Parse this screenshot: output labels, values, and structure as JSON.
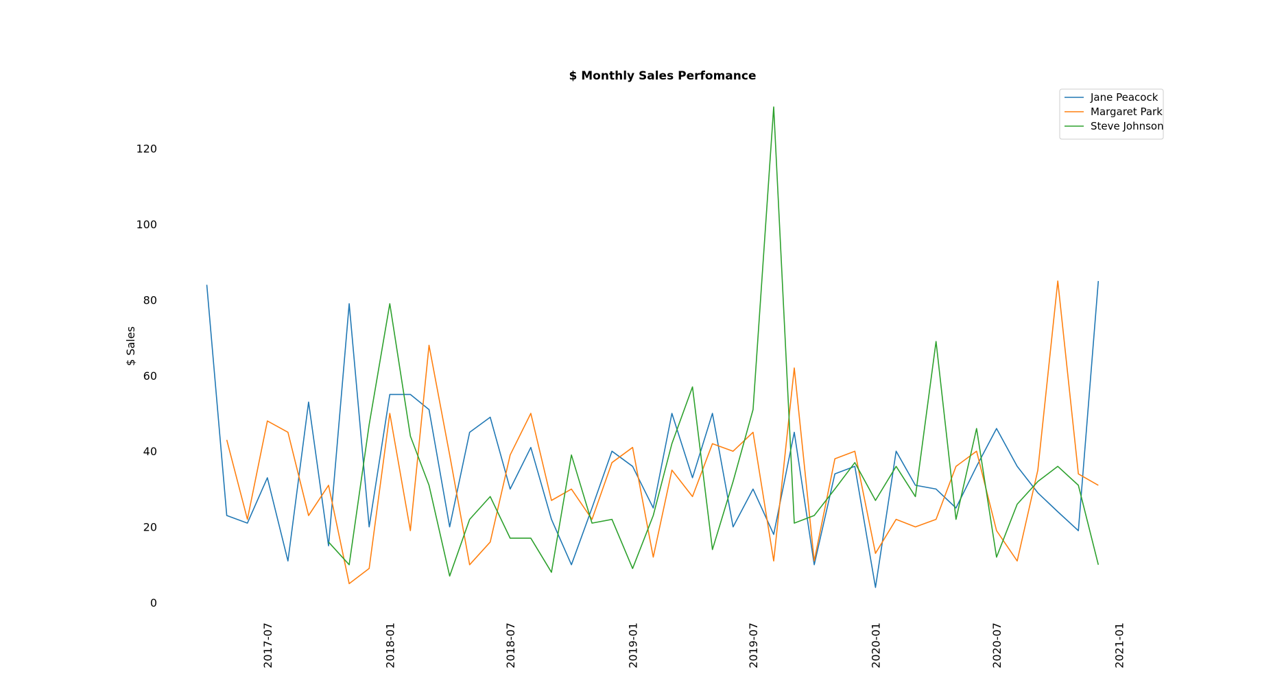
{
  "chart_data": {
    "type": "line",
    "title": "$ Monthly Sales Perfomance",
    "xlabel": "",
    "ylabel": "$ Sales",
    "x_ticks": [
      "2017-07",
      "2018-01",
      "2018-07",
      "2019-01",
      "2019-07",
      "2020-01",
      "2020-07",
      "2021-01"
    ],
    "y_ticks": [
      0,
      20,
      40,
      60,
      80,
      100,
      120
    ],
    "ylim": [
      -2,
      133
    ],
    "xlim": [
      "2017-03-15",
      "2021-01-15"
    ],
    "grid": false,
    "legend_position": "top-right",
    "series": [
      {
        "name": "Jane Peacock",
        "color": "#1f77b4",
        "points": [
          [
            "2017-04-01",
            84
          ],
          [
            "2017-05-01",
            23
          ],
          [
            "2017-06-01",
            21
          ],
          [
            "2017-07-01",
            33
          ],
          [
            "2017-08-01",
            11
          ],
          [
            "2017-09-01",
            53
          ],
          [
            "2017-10-01",
            15
          ],
          [
            "2017-11-01",
            79
          ],
          [
            "2017-12-01",
            20
          ],
          [
            "2018-01-01",
            55
          ],
          [
            "2018-02-01",
            55
          ],
          [
            "2018-03-01",
            51
          ],
          [
            "2018-04-01",
            20
          ],
          [
            "2018-05-01",
            45
          ],
          [
            "2018-06-01",
            49
          ],
          [
            "2018-07-01",
            30
          ],
          [
            "2018-08-01",
            41
          ],
          [
            "2018-09-01",
            22
          ],
          [
            "2018-10-01",
            10
          ],
          [
            "2018-11-01",
            25
          ],
          [
            "2018-12-01",
            40
          ],
          [
            "2019-01-01",
            36
          ],
          [
            "2019-02-01",
            25
          ],
          [
            "2019-03-01",
            50
          ],
          [
            "2019-04-01",
            33
          ],
          [
            "2019-05-01",
            50
          ],
          [
            "2019-06-01",
            20
          ],
          [
            "2019-07-01",
            30
          ],
          [
            "2019-08-01",
            18
          ],
          [
            "2019-09-01",
            45
          ],
          [
            "2019-10-01",
            10
          ],
          [
            "2019-11-01",
            34
          ],
          [
            "2019-12-01",
            36
          ],
          [
            "2020-01-01",
            4
          ],
          [
            "2020-02-01",
            40
          ],
          [
            "2020-03-01",
            31
          ],
          [
            "2020-04-01",
            30
          ],
          [
            "2020-05-01",
            25
          ],
          [
            "2020-06-01",
            36
          ],
          [
            "2020-07-01",
            46
          ],
          [
            "2020-08-01",
            36
          ],
          [
            "2020-09-01",
            29
          ],
          [
            "2020-10-01",
            24
          ],
          [
            "2020-11-01",
            19
          ],
          [
            "2020-12-01",
            85
          ]
        ]
      },
      {
        "name": "Margaret Park",
        "color": "#ff7f0e",
        "points": [
          [
            "2017-05-01",
            43
          ],
          [
            "2017-06-01",
            22
          ],
          [
            "2017-07-01",
            48
          ],
          [
            "2017-08-01",
            45
          ],
          [
            "2017-09-01",
            23
          ],
          [
            "2017-10-01",
            31
          ],
          [
            "2017-11-01",
            5
          ],
          [
            "2017-12-01",
            9
          ],
          [
            "2018-01-01",
            50
          ],
          [
            "2018-02-01",
            19
          ],
          [
            "2018-03-01",
            68
          ],
          [
            "2018-04-01",
            39
          ],
          [
            "2018-05-01",
            10
          ],
          [
            "2018-06-01",
            16
          ],
          [
            "2018-07-01",
            39
          ],
          [
            "2018-08-01",
            50
          ],
          [
            "2018-09-01",
            27
          ],
          [
            "2018-10-01",
            30
          ],
          [
            "2018-11-01",
            22
          ],
          [
            "2018-12-01",
            37
          ],
          [
            "2019-01-01",
            41
          ],
          [
            "2019-02-01",
            12
          ],
          [
            "2019-03-01",
            35
          ],
          [
            "2019-04-01",
            28
          ],
          [
            "2019-05-01",
            42
          ],
          [
            "2019-06-01",
            40
          ],
          [
            "2019-07-01",
            45
          ],
          [
            "2019-08-01",
            11
          ],
          [
            "2019-09-01",
            62
          ],
          [
            "2019-10-01",
            11
          ],
          [
            "2019-11-01",
            38
          ],
          [
            "2019-12-01",
            40
          ],
          [
            "2020-01-01",
            13
          ],
          [
            "2020-02-01",
            22
          ],
          [
            "2020-03-01",
            20
          ],
          [
            "2020-04-01",
            22
          ],
          [
            "2020-05-01",
            36
          ],
          [
            "2020-06-01",
            40
          ],
          [
            "2020-07-01",
            19
          ],
          [
            "2020-08-01",
            11
          ],
          [
            "2020-09-01",
            35
          ],
          [
            "2020-10-01",
            85
          ],
          [
            "2020-11-01",
            34
          ],
          [
            "2020-12-01",
            31
          ]
        ]
      },
      {
        "name": "Steve Johnson",
        "color": "#2ca02c",
        "points": [
          [
            "2017-10-01",
            16
          ],
          [
            "2017-11-01",
            10
          ],
          [
            "2017-12-01",
            47
          ],
          [
            "2018-01-01",
            79
          ],
          [
            "2018-02-01",
            44
          ],
          [
            "2018-03-01",
            31
          ],
          [
            "2018-04-01",
            7
          ],
          [
            "2018-05-01",
            22
          ],
          [
            "2018-06-01",
            28
          ],
          [
            "2018-07-01",
            17
          ],
          [
            "2018-08-01",
            17
          ],
          [
            "2018-09-01",
            8
          ],
          [
            "2018-10-01",
            39
          ],
          [
            "2018-11-01",
            21
          ],
          [
            "2018-12-01",
            22
          ],
          [
            "2019-01-01",
            9
          ],
          [
            "2019-02-01",
            23
          ],
          [
            "2019-03-01",
            42
          ],
          [
            "2019-04-01",
            57
          ],
          [
            "2019-05-01",
            14
          ],
          [
            "2019-06-01",
            32
          ],
          [
            "2019-07-01",
            51
          ],
          [
            "2019-08-01",
            131
          ],
          [
            "2019-09-01",
            21
          ],
          [
            "2019-10-01",
            23
          ],
          [
            "2019-11-01",
            30
          ],
          [
            "2019-12-01",
            37
          ],
          [
            "2020-01-01",
            27
          ],
          [
            "2020-02-01",
            36
          ],
          [
            "2020-03-01",
            28
          ],
          [
            "2020-04-01",
            69
          ],
          [
            "2020-05-01",
            22
          ],
          [
            "2020-06-01",
            46
          ],
          [
            "2020-07-01",
            12
          ],
          [
            "2020-08-01",
            26
          ],
          [
            "2020-09-01",
            32
          ],
          [
            "2020-10-01",
            36
          ],
          [
            "2020-11-01",
            31
          ],
          [
            "2020-12-01",
            10
          ]
        ]
      }
    ]
  }
}
